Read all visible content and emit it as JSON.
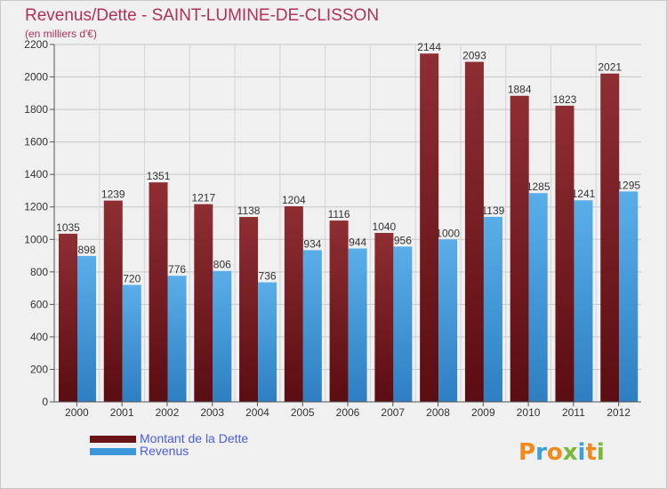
{
  "header": {
    "title": "Revenus/Dette - SAINT-LUMINE-DE-CLISSON",
    "subtitle": "(en milliers d'€)"
  },
  "logo": {
    "text": "Proxiti"
  },
  "colors": {
    "debt": "#7a1e22",
    "revenue": "#3b97d9",
    "axis": "#555555",
    "grid": "#cccccc"
  },
  "chart_data": {
    "type": "bar",
    "categories": [
      "2000",
      "2001",
      "2002",
      "2003",
      "2004",
      "2005",
      "2006",
      "2007",
      "2008",
      "2009",
      "2010",
      "2011",
      "2012"
    ],
    "series": [
      {
        "name": "Montant de la Dette",
        "color": "#7a1e22",
        "values": [
          1035,
          1239,
          1351,
          1217,
          1138,
          1204,
          1116,
          1040,
          2144,
          2093,
          1884,
          1823,
          2021
        ]
      },
      {
        "name": "Revenus",
        "color": "#3b97d9",
        "values": [
          898,
          720,
          776,
          806,
          736,
          934,
          944,
          956,
          1000,
          1139,
          1285,
          1241,
          1295
        ]
      }
    ],
    "title": "Revenus/Dette - SAINT-LUMINE-DE-CLISSON",
    "subtitle": "(en milliers d'€)",
    "ylim": [
      0,
      2200
    ],
    "yticks": [
      0,
      200,
      400,
      600,
      800,
      1000,
      1200,
      1400,
      1600,
      1800,
      2000,
      2200
    ],
    "grid": true,
    "legend": "bottom-left"
  }
}
